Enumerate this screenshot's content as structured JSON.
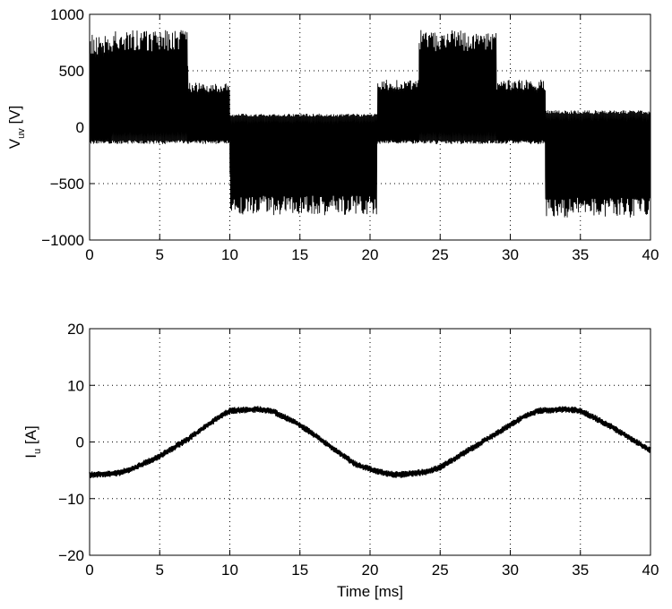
{
  "chart_data": [
    {
      "type": "line",
      "title": "",
      "xlabel": "",
      "ylabel_main": "V",
      "ylabel_sub": "uv",
      "ylabel_unit": "[V]",
      "xlim": [
        0,
        40
      ],
      "ylim": [
        -1000,
        1000
      ],
      "xticks": [
        0,
        5,
        10,
        15,
        20,
        25,
        30,
        35,
        40
      ],
      "yticks": [
        -1000,
        -500,
        0,
        500,
        1000
      ],
      "grid": true,
      "series": [
        {
          "line_color": "#000000",
          "description_levels_x": [
            0,
            1.5,
            7,
            10,
            20.5,
            23.5,
            29,
            32.5,
            40
          ],
          "x": [
            0,
            1.5,
            1.5,
            7,
            7,
            10,
            10,
            20.5,
            20.5,
            23.5,
            23.5,
            29,
            29,
            32.5,
            32.5,
            40
          ],
          "y_upper": [
            820,
            820,
            860,
            860,
            400,
            400,
            120,
            120,
            420,
            420,
            860,
            860,
            420,
            420,
            150,
            150
          ],
          "y_lower": [
            -150,
            -150,
            -150,
            -150,
            -150,
            -150,
            -780,
            -780,
            -150,
            -150,
            -150,
            -150,
            -150,
            -150,
            -800,
            -800
          ],
          "y_mean": [
            100,
            100,
            520,
            520,
            50,
            50,
            -450,
            -450,
            50,
            50,
            520,
            520,
            60,
            60,
            -450,
            -450
          ]
        }
      ]
    },
    {
      "type": "line",
      "title": "",
      "xlabel": "Time [ms]",
      "ylabel_main": "I",
      "ylabel_sub": "u",
      "ylabel_unit": "[A]",
      "xlim": [
        0,
        40
      ],
      "ylim": [
        -20,
        20
      ],
      "xticks": [
        0,
        5,
        10,
        15,
        20,
        25,
        30,
        35,
        40
      ],
      "yticks": [
        -20,
        -10,
        0,
        10,
        20
      ],
      "grid": true,
      "series": [
        {
          "line_color": "#000000",
          "x": [
            0,
            2,
            3,
            5,
            7,
            9,
            10,
            12,
            13,
            15,
            17,
            19,
            21,
            22,
            24,
            25,
            27,
            29,
            31,
            32,
            34,
            35,
            37,
            39,
            40
          ],
          "y": [
            -5.8,
            -5.5,
            -4.8,
            -2.5,
            0.5,
            4.0,
            5.5,
            5.8,
            5.5,
            3.0,
            -0.5,
            -4.0,
            -5.5,
            -5.8,
            -5.3,
            -4.5,
            -1.5,
            1.5,
            4.5,
            5.5,
            5.8,
            5.5,
            3.0,
            0.0,
            -1.5
          ],
          "ripple": 0.6
        }
      ]
    }
  ]
}
